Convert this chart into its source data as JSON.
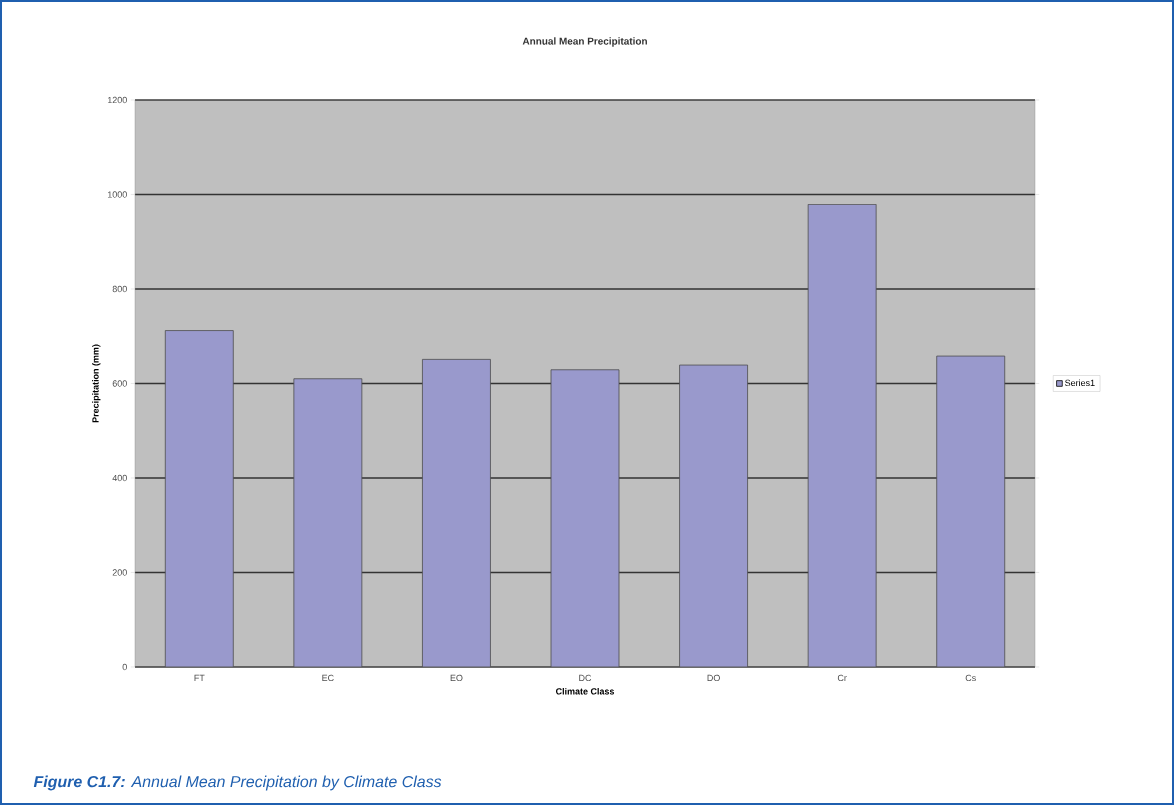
{
  "chart_data": {
    "type": "bar",
    "title": "Annual Mean Precipitation",
    "xlabel": "Climate Class",
    "ylabel": "Precipitation (mm)",
    "categories": [
      "FT",
      "EC",
      "EO",
      "DC",
      "DO",
      "Cr",
      "Cs"
    ],
    "series": [
      {
        "name": "Series1",
        "color": "#9999cc",
        "values": [
          712,
          610,
          651,
          629,
          639,
          979,
          658
        ]
      }
    ],
    "ylim": [
      0,
      1200
    ],
    "yticks": [
      0,
      200,
      400,
      600,
      800,
      1000,
      1200
    ],
    "grid": "y",
    "legend": "right",
    "annotations": [
      "**Figure C1.7:** Annual Mean Precipitation by Climate Class"
    ]
  }
}
